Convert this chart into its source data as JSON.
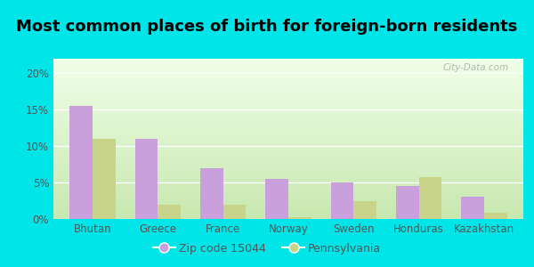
{
  "title": "Most common places of birth for foreign-born residents",
  "categories": [
    "Bhutan",
    "Greece",
    "France",
    "Norway",
    "Sweden",
    "Honduras",
    "Kazakhstan"
  ],
  "zip_values": [
    15.5,
    11.0,
    7.0,
    5.5,
    5.0,
    4.5,
    3.0
  ],
  "pa_values": [
    11.0,
    2.0,
    2.0,
    0.2,
    2.5,
    5.8,
    0.8
  ],
  "zip_color": "#c9a0dc",
  "pa_color": "#c8d48a",
  "zip_label": "Zip code 15044",
  "pa_label": "Pennsylvania",
  "ylim": [
    0,
    22
  ],
  "yticks": [
    0,
    5,
    10,
    15,
    20
  ],
  "ytick_labels": [
    "0%",
    "5%",
    "10%",
    "15%",
    "20%"
  ],
  "bg_outer": "#00e5e8",
  "bg_inner_top": "#f0ffe8",
  "bg_inner_bottom": "#c8e8b0",
  "title_fontsize": 13,
  "axis_fontsize": 8.5,
  "legend_fontsize": 9,
  "bar_width": 0.35,
  "watermark": "City-Data.com"
}
